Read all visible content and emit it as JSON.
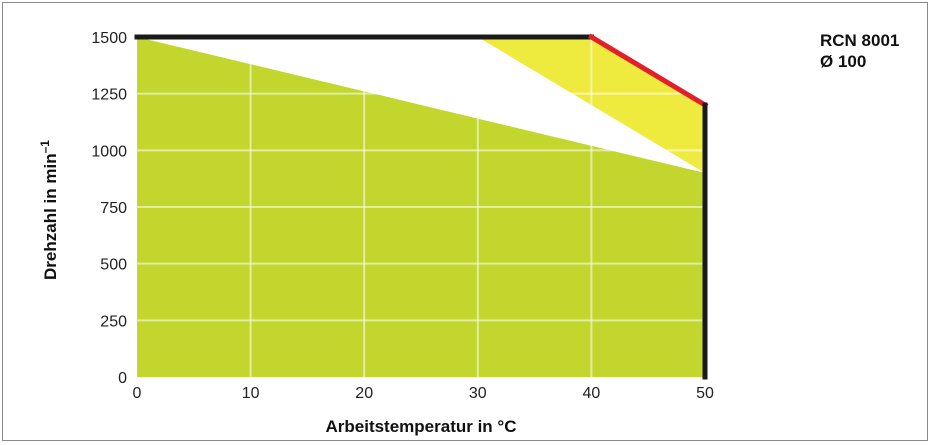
{
  "product": {
    "line1": "RCN 8001",
    "line2": "Ø 100"
  },
  "chart_data": {
    "type": "area",
    "xlabel": "Arbeitstemperatur in °C",
    "ylabel": {
      "text": "Drehzahl in min",
      "superscript": "–1"
    },
    "xlim": [
      0,
      50
    ],
    "ylim": [
      0,
      1500
    ],
    "xticks": [
      0,
      10,
      20,
      30,
      40,
      50
    ],
    "yticks": [
      0,
      250,
      500,
      750,
      1000,
      1250,
      1500
    ],
    "grid": true,
    "series": [
      {
        "x": [
          0,
          30,
          50,
          50,
          0
        ],
        "y": [
          0,
          0,
          0,
          900,
          1500
        ],
        "color": "#c2d62d"
      },
      {
        "x": [
          30,
          40,
          50,
          50
        ],
        "y": [
          1500,
          1500,
          1200,
          900
        ],
        "color": "#eeea3e"
      },
      {
        "x": [
          0,
          40
        ],
        "y": [
          1500,
          1500
        ],
        "color": "#1a1a1a"
      },
      {
        "x": [
          40,
          50
        ],
        "y": [
          1500,
          1200
        ],
        "color": "#e3202a"
      },
      {
        "x": [
          50,
          50
        ],
        "y": [
          1200,
          0
        ],
        "color": "#1a1a1a"
      }
    ]
  }
}
